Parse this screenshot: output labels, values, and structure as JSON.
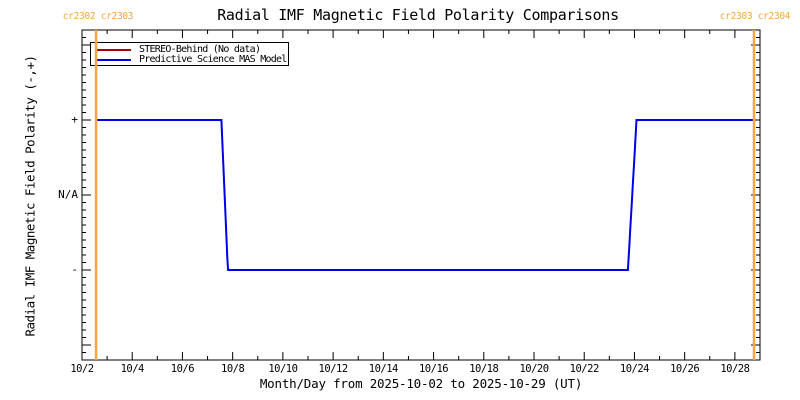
{
  "figure": {
    "title": "Radial IMF Magnetic Field Polarity Comparisons",
    "cr_left": "cr2302 cr2303",
    "cr_right": "cr2303 cr2304"
  },
  "legend": {
    "items": [
      {
        "label": "STEREO-Behind (No data)",
        "color": "#aa0000"
      },
      {
        "label": "Predictive Science MAS Model",
        "color": "#0000e8"
      }
    ]
  },
  "colors": {
    "axis": "#000000",
    "boundary_orange": "#f9a440",
    "stereo_red": "#aa0000",
    "mas_blue": "#0000e8",
    "background": "#ffffff"
  },
  "chart_data": {
    "type": "line",
    "title": "Radial IMF Magnetic Field Polarity Comparisons",
    "xlabel": "Month/Day from 2025-10-02 to 2025-10-29 (UT)",
    "ylabel": "Radial IMF Magnetic Field Polarity (-,+)",
    "x_start_date": "2025-10-02",
    "x_end_date": "2025-10-29",
    "x_days_span": 27,
    "grid": false,
    "legend_position": "top-left",
    "ylim": [
      -2.2,
      2.2
    ],
    "y_ticks": [
      {
        "label": "+",
        "value": 1
      },
      {
        "label": "N/A",
        "value": 0
      },
      {
        "label": "-",
        "value": -1
      }
    ],
    "y_major_values": [
      -2,
      -1,
      0,
      1,
      2
    ],
    "y_minor_step": 0.1,
    "x_major_tick_days": [
      0,
      2,
      4,
      6,
      8,
      10,
      12,
      14,
      16,
      18,
      20,
      22,
      24,
      26
    ],
    "x_tick_labels": [
      "10/2",
      "10/4",
      "10/6",
      "10/8",
      "10/10",
      "10/12",
      "10/14",
      "10/16",
      "10/18",
      "10/20",
      "10/22",
      "10/24",
      "10/26",
      "10/28"
    ],
    "x_minor_tick_days": [
      1,
      3,
      5,
      7,
      9,
      11,
      13,
      15,
      17,
      19,
      21,
      23,
      25,
      27
    ],
    "series": [
      {
        "name": "STEREO-Behind (No data)",
        "color": "#aa0000",
        "points": []
      },
      {
        "name": "Predictive Science MAS Model",
        "color": "#0000e8",
        "points": [
          [
            0.56,
            1
          ],
          [
            5.55,
            1
          ],
          [
            5.59,
            0.69
          ],
          [
            5.63,
            0.38
          ],
          [
            5.67,
            0.07
          ],
          [
            5.71,
            -0.24
          ],
          [
            5.75,
            -0.55
          ],
          [
            5.79,
            -0.86
          ],
          [
            5.82,
            -1
          ],
          [
            21.74,
            -1
          ],
          [
            21.79,
            -0.71
          ],
          [
            21.84,
            -0.42
          ],
          [
            21.89,
            -0.13
          ],
          [
            21.94,
            0.16
          ],
          [
            21.99,
            0.45
          ],
          [
            22.04,
            0.74
          ],
          [
            22.08,
            1
          ],
          [
            26.76,
            1
          ]
        ]
      }
    ],
    "carrington_boundaries": {
      "color": "#f9a440",
      "lines": [
        {
          "day": 0.56,
          "label": "cr2302 cr2303"
        },
        {
          "day": 26.76,
          "label": "cr2303 cr2304"
        }
      ]
    }
  }
}
